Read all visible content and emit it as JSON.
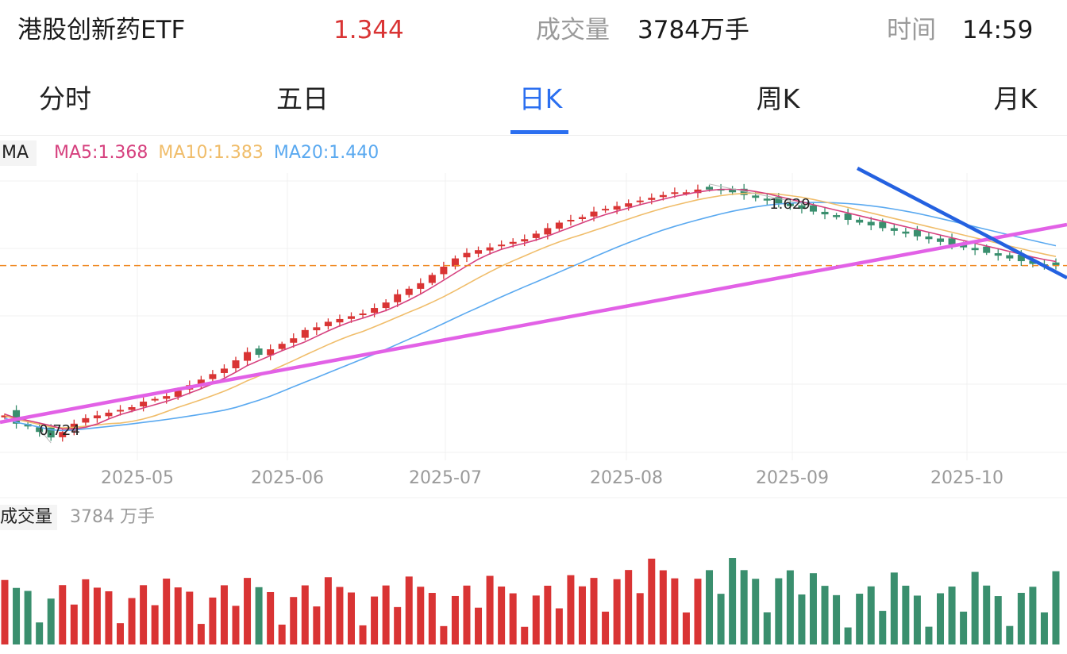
{
  "header": {
    "name": "港股创新药ETF",
    "price": "1.344",
    "volume_label": "成交量",
    "volume_value": "3784万手",
    "time_label": "时间",
    "time_value": "14:59"
  },
  "tabs": [
    {
      "label": "分时",
      "active": false
    },
    {
      "label": "五日",
      "active": false
    },
    {
      "label": "日K",
      "active": true
    },
    {
      "label": "周K",
      "active": false
    },
    {
      "label": "月K",
      "active": false
    }
  ],
  "ma_legend": {
    "label": "MA",
    "ma5": "MA5:1.368",
    "ma10": "MA10:1.383",
    "ma20": "MA20:1.440"
  },
  "volume_legend": {
    "label": "成交量",
    "value": "3784 万手"
  },
  "colors": {
    "up": "#d93434",
    "down": "#3a8f6e",
    "ma5": "#d6407e",
    "ma10": "#f0bd6a",
    "ma20": "#5aa9f0",
    "accent": "#2b6ff0",
    "trendline_support": "#e261e6",
    "trendline_resistance": "#2461e0",
    "reference_line": "#f08a24"
  },
  "chart_data": {
    "type": "candlestick",
    "x_tick_labels": [
      "2025-05",
      "2025-06",
      "2025-07",
      "2025-08",
      "2025-09",
      "2025-10"
    ],
    "annotations": {
      "high_label": "1.629",
      "low_label": "0.724"
    },
    "close_path": [
      0.8,
      0.77,
      0.76,
      0.74,
      0.72,
      0.74,
      0.77,
      0.79,
      0.8,
      0.81,
      0.82,
      0.83,
      0.85,
      0.86,
      0.87,
      0.89,
      0.91,
      0.93,
      0.95,
      0.97,
      1.0,
      1.03,
      1.02,
      1.04,
      1.06,
      1.08,
      1.11,
      1.12,
      1.14,
      1.15,
      1.16,
      1.17,
      1.19,
      1.21,
      1.24,
      1.26,
      1.28,
      1.31,
      1.34,
      1.37,
      1.39,
      1.4,
      1.41,
      1.42,
      1.43,
      1.44,
      1.46,
      1.48,
      1.5,
      1.51,
      1.52,
      1.54,
      1.55,
      1.56,
      1.57,
      1.58,
      1.59,
      1.6,
      1.61,
      1.61,
      1.62,
      1.62,
      1.62,
      1.61,
      1.6,
      1.59,
      1.58,
      1.57,
      1.56,
      1.55,
      1.54,
      1.53,
      1.52,
      1.51,
      1.5,
      1.49,
      1.48,
      1.47,
      1.46,
      1.45,
      1.44,
      1.43,
      1.42,
      1.41,
      1.4,
      1.39,
      1.38,
      1.37,
      1.36,
      1.35,
      1.345,
      1.344
    ]
  }
}
